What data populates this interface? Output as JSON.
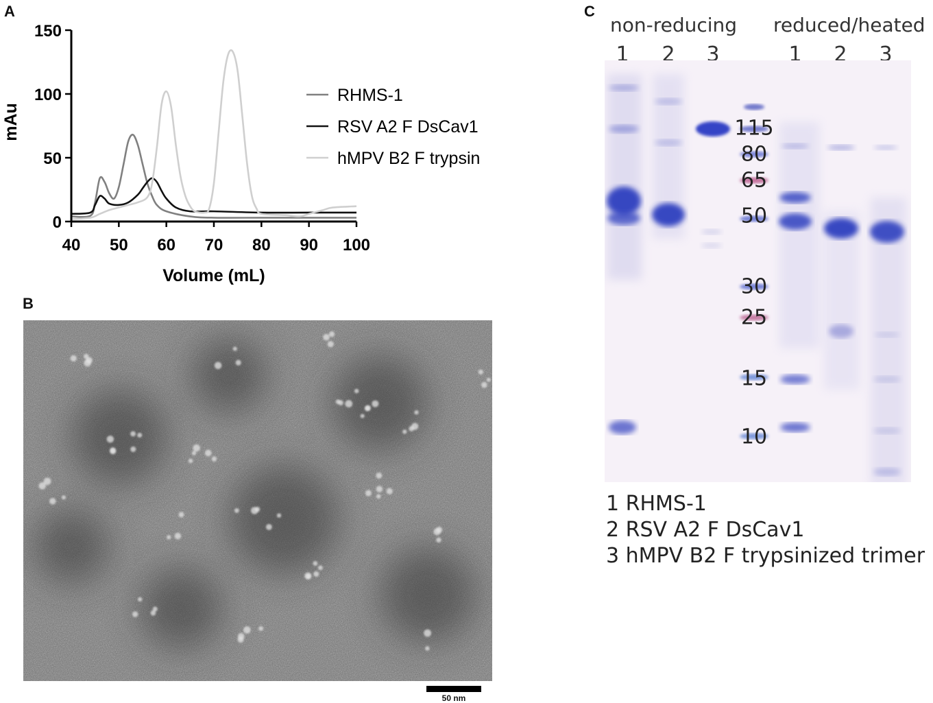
{
  "panels": {
    "a": "A",
    "b": "B",
    "c": "C"
  },
  "chart_data": {
    "type": "line",
    "xlabel": "Volume (mL)",
    "ylabel": "mAu",
    "xlim": [
      40,
      100
    ],
    "ylim": [
      0,
      150
    ],
    "xticks": [
      "40",
      "50",
      "60",
      "70",
      "80",
      "90",
      "100"
    ],
    "yticks": [
      "0",
      "50",
      "100",
      "150"
    ],
    "grid": false,
    "legend_position": "right",
    "series": [
      {
        "name": "RHMS-1",
        "color": "#808080",
        "points": [
          [
            40,
            4
          ],
          [
            44,
            4.5
          ],
          [
            45,
            15
          ],
          [
            46,
            34
          ],
          [
            47,
            31
          ],
          [
            48,
            22
          ],
          [
            49,
            18
          ],
          [
            50,
            27
          ],
          [
            51,
            45
          ],
          [
            52,
            63
          ],
          [
            53,
            68
          ],
          [
            54,
            60
          ],
          [
            55,
            45
          ],
          [
            56,
            30
          ],
          [
            57,
            20
          ],
          [
            58,
            13
          ],
          [
            60,
            8
          ],
          [
            65,
            4
          ],
          [
            70,
            3
          ],
          [
            80,
            3
          ],
          [
            90,
            3
          ],
          [
            100,
            3
          ]
        ]
      },
      {
        "name": "RSV A2 F DsCav1",
        "color": "#111111",
        "points": [
          [
            40,
            6
          ],
          [
            44,
            7
          ],
          [
            45,
            13
          ],
          [
            46,
            20
          ],
          [
            47,
            18
          ],
          [
            48,
            14
          ],
          [
            50,
            13
          ],
          [
            52,
            15
          ],
          [
            54,
            21
          ],
          [
            55,
            26
          ],
          [
            56,
            31
          ],
          [
            57,
            34
          ],
          [
            58,
            31
          ],
          [
            59,
            24
          ],
          [
            60,
            18
          ],
          [
            62,
            11
          ],
          [
            65,
            8
          ],
          [
            70,
            8
          ],
          [
            80,
            7
          ],
          [
            90,
            7
          ],
          [
            100,
            7
          ]
        ]
      },
      {
        "name": "hMPV B2 F trypsin",
        "color": "#cfcfcf",
        "points": [
          [
            40,
            2
          ],
          [
            44,
            3
          ],
          [
            46,
            6
          ],
          [
            48,
            9
          ],
          [
            50,
            11
          ],
          [
            52,
            13
          ],
          [
            54,
            15
          ],
          [
            56,
            19
          ],
          [
            57,
            30
          ],
          [
            58,
            58
          ],
          [
            59,
            92
          ],
          [
            60,
            102
          ],
          [
            61,
            90
          ],
          [
            62,
            60
          ],
          [
            63,
            35
          ],
          [
            64,
            20
          ],
          [
            65,
            12
          ],
          [
            66,
            8
          ],
          [
            68,
            7
          ],
          [
            69,
            10
          ],
          [
            70,
            30
          ],
          [
            71,
            70
          ],
          [
            72,
            110
          ],
          [
            73,
            131
          ],
          [
            74,
            133
          ],
          [
            75,
            118
          ],
          [
            76,
            82
          ],
          [
            77,
            45
          ],
          [
            78,
            20
          ],
          [
            79,
            10
          ],
          [
            80,
            6
          ],
          [
            85,
            5
          ],
          [
            88,
            4
          ],
          [
            90,
            6
          ],
          [
            93,
            9
          ],
          [
            95,
            11
          ],
          [
            100,
            12
          ]
        ]
      }
    ]
  },
  "em": {
    "scale_label": "50 nm"
  },
  "gel": {
    "header_left": "non-reducing",
    "header_right": "reduced/heated",
    "lane_numbers": [
      "1",
      "2",
      "3",
      "1",
      "2",
      "3"
    ],
    "markers": [
      "115",
      "80",
      "65",
      "50",
      "30",
      "25",
      "15",
      "10"
    ],
    "legend": [
      "1 RHMS-1",
      "2 RSV A2 F DsCav1",
      "3 hMPV B2 F trypsinized trimer"
    ]
  }
}
